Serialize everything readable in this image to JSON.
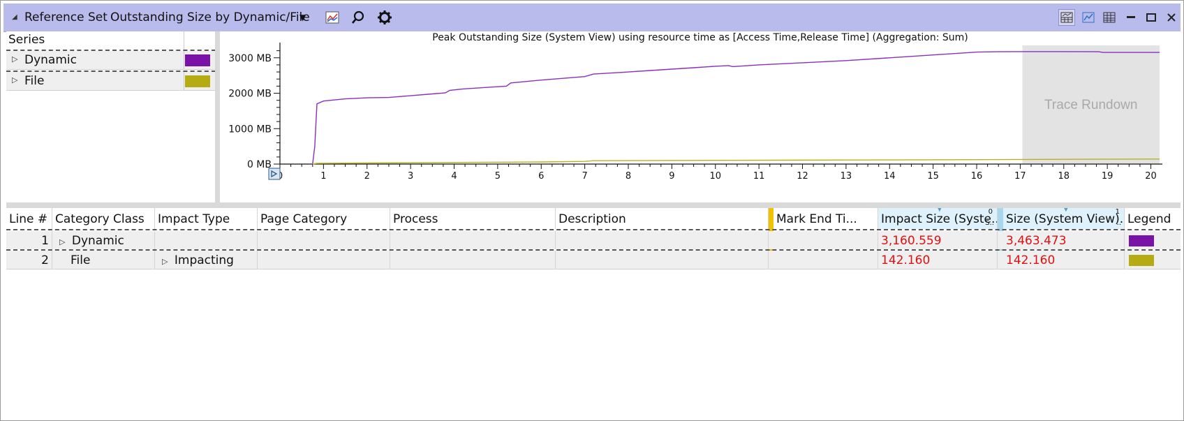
{
  "titlebar": {
    "label": "Reference Set",
    "preset": "Outstanding Size by Dynamic/File",
    "icons": [
      "chart-icon",
      "search-icon",
      "gear-icon"
    ],
    "window_buttons": [
      "display-graph-and-table-icon",
      "display-graph-icon",
      "display-table-icon",
      "minimize-icon",
      "maximize-icon",
      "close-icon"
    ]
  },
  "series_panel": {
    "header": "Series",
    "items": [
      {
        "label": "Dynamic",
        "color": "#7a12a8"
      },
      {
        "label": "File",
        "color": "#b4ac12"
      }
    ]
  },
  "chart_data": {
    "type": "line",
    "title": "Peak Outstanding Size (System View) using resource time as [Access Time,Release Time] (Aggregation: Sum)",
    "xlabel": "",
    "ylabel": "",
    "x_ticks": [
      "0",
      "1",
      "2",
      "3",
      "4",
      "5",
      "6",
      "7",
      "8",
      "9",
      "10",
      "11",
      "12",
      "13",
      "14",
      "15",
      "16",
      "17",
      "18",
      "19",
      "20"
    ],
    "y_ticks": [
      "0 MB",
      "1000 MB",
      "2000 MB",
      "3000 MB"
    ],
    "xlim": [
      0,
      20.2
    ],
    "ylim": [
      0,
      3350
    ],
    "grid": false,
    "shaded_region": {
      "label": "Trace Rundown",
      "x_start": 17.05,
      "x_end": 20.2
    },
    "series": [
      {
        "name": "Dynamic",
        "color": "#8a2ec0",
        "points": [
          [
            0.75,
            0
          ],
          [
            0.8,
            500
          ],
          [
            0.85,
            1700
          ],
          [
            1.0,
            1780
          ],
          [
            1.5,
            1840
          ],
          [
            2.0,
            1870
          ],
          [
            2.5,
            1880
          ],
          [
            3.0,
            1930
          ],
          [
            3.5,
            1980
          ],
          [
            3.8,
            2010
          ],
          [
            3.9,
            2080
          ],
          [
            4.2,
            2120
          ],
          [
            4.8,
            2170
          ],
          [
            5.2,
            2200
          ],
          [
            5.3,
            2290
          ],
          [
            6.0,
            2370
          ],
          [
            6.5,
            2420
          ],
          [
            7.0,
            2470
          ],
          [
            7.2,
            2540
          ],
          [
            8.0,
            2600
          ],
          [
            8.5,
            2640
          ],
          [
            9.0,
            2680
          ],
          [
            9.5,
            2720
          ],
          [
            10.0,
            2760
          ],
          [
            10.3,
            2780
          ],
          [
            10.4,
            2750
          ],
          [
            11.0,
            2800
          ],
          [
            12.0,
            2860
          ],
          [
            13.0,
            2920
          ],
          [
            14.0,
            3000
          ],
          [
            15.0,
            3080
          ],
          [
            16.0,
            3160
          ],
          [
            16.5,
            3170
          ],
          [
            17.0,
            3175
          ],
          [
            17.5,
            3175
          ],
          [
            18.0,
            3175
          ],
          [
            18.8,
            3170
          ],
          [
            18.9,
            3150
          ],
          [
            19.5,
            3150
          ],
          [
            20.2,
            3150
          ]
        ]
      },
      {
        "name": "File",
        "color": "#b8b020",
        "points": [
          [
            0.75,
            0
          ],
          [
            0.85,
            20
          ],
          [
            2.0,
            30
          ],
          [
            4.0,
            45
          ],
          [
            6.0,
            60
          ],
          [
            7.0,
            75
          ],
          [
            7.2,
            95
          ],
          [
            10.0,
            105
          ],
          [
            13.0,
            115
          ],
          [
            16.0,
            125
          ],
          [
            17.0,
            130
          ],
          [
            20.2,
            142
          ]
        ]
      }
    ]
  },
  "table": {
    "columns": [
      "Line #",
      "Category Class",
      "Impact Type",
      "Page Category",
      "Process",
      "Description",
      "Mark End Ti...",
      "Impact Size (Syste...",
      "Size (System View)...",
      "Legend"
    ],
    "sort_marks": {
      "impact": "0",
      "impact_sub": "S..",
      "size": "1",
      "size_sub": ".."
    },
    "rows": [
      {
        "line": "1",
        "category": "Dynamic",
        "impact_type": "",
        "impact_size": "3,160.559",
        "size": "3,463.473",
        "legend_color": "#7a12a8"
      },
      {
        "line": "2",
        "category": "File",
        "impact_type": "Impacting",
        "impact_size": "142.160",
        "size": "142.160",
        "legend_color": "#b4ac12"
      }
    ]
  }
}
